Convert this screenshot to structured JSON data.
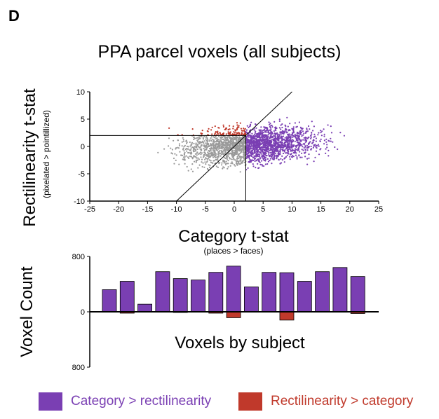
{
  "panel_label": "D",
  "colors": {
    "category": "#7a3fb3",
    "rectilinearity": "#c0392b",
    "neither": "#9a9a9a",
    "axis": "#000000"
  },
  "legend": {
    "category_label": "Category > rectilinearity",
    "rectilinearity_label": "Rectilinearity > category",
    "category_text_color": "#7a3fb3",
    "rectilinearity_text_color": "#c0392b"
  },
  "chart_data": [
    {
      "type": "scatter",
      "title": "PPA parcel voxels (all subjects)",
      "xlabel": "Category t-stat",
      "xlabel_sub": "(places > faces)",
      "ylabel": "Rectilinearity t-stat",
      "ylabel_sub": "(pixelated > pointillized)",
      "xlim": [
        -25,
        25
      ],
      "ylim": [
        -10,
        10
      ],
      "xticks": [
        "-25",
        "-20",
        "-15",
        "-10",
        "-5",
        "0",
        "5",
        "10",
        "15",
        "20",
        "25"
      ],
      "yticks": [
        "10",
        "5",
        "0",
        "-5",
        "-10"
      ],
      "threshold_x": 2,
      "threshold_y": 2,
      "identity_line": true,
      "groups": [
        {
          "color_key": "neither",
          "x_range": [
            -18,
            2
          ],
          "y_range": [
            -6,
            2
          ]
        },
        {
          "color_key": "category",
          "x_range": [
            2,
            22
          ],
          "y_range": [
            -6,
            3
          ]
        },
        {
          "color_key": "rectilinearity",
          "x_range": [
            -3,
            2
          ],
          "y_range": [
            2,
            5.5
          ]
        }
      ]
    },
    {
      "type": "bar",
      "title": "Voxels by subject",
      "ylabel": "Voxel Count",
      "yticks": [
        "800",
        "0",
        "800"
      ],
      "ylim": [
        -800,
        800
      ],
      "grid": false,
      "series": [
        {
          "color_key": "category",
          "values": [
            320,
            440,
            110,
            580,
            480,
            460,
            570,
            660,
            360,
            570,
            565,
            440,
            580,
            640,
            510
          ]
        },
        {
          "color_key": "rectilinearity",
          "values": [
            0,
            -20,
            0,
            -5,
            -10,
            -5,
            -20,
            -85,
            0,
            -5,
            -120,
            0,
            0,
            0,
            -25
          ]
        }
      ]
    }
  ]
}
